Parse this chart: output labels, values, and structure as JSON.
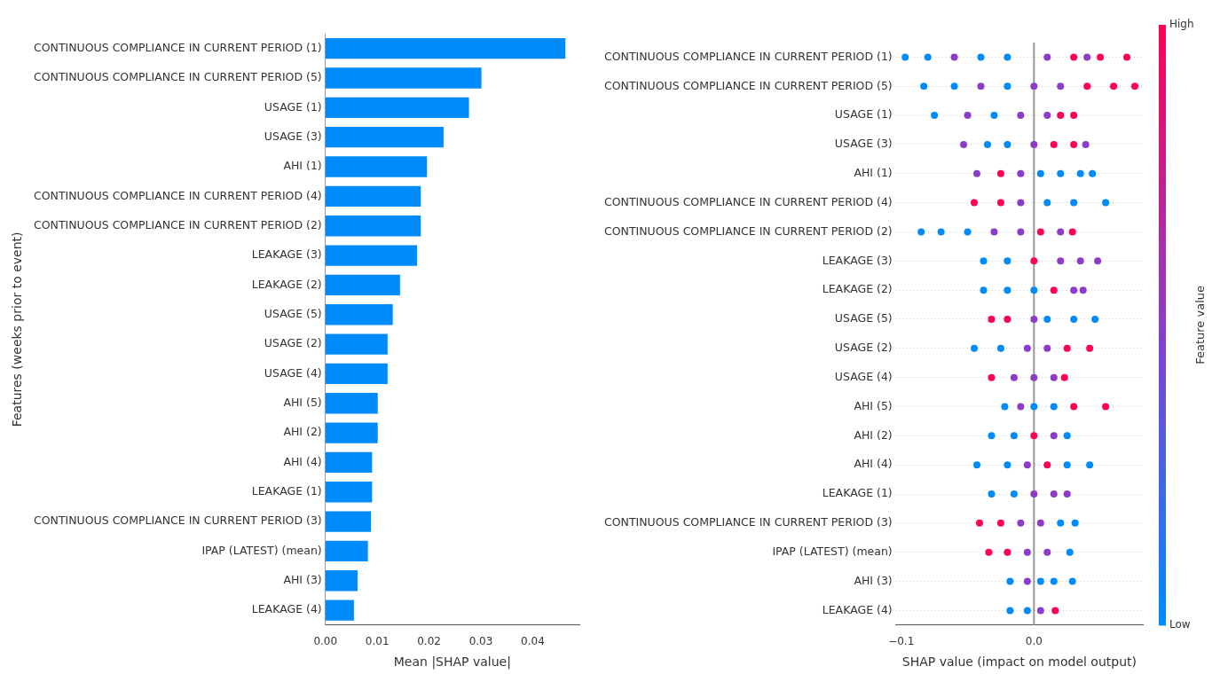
{
  "chart_data": [
    {
      "type": "bar",
      "orientation": "horizontal",
      "xlabel": "Mean |SHAP value|",
      "ylabel": "Features (weeks prior to event)",
      "categories": [
        "CONTINUOUS COMPLIANCE IN CURRENT PERIOD (1)",
        "CONTINUOUS COMPLIANCE IN CURRENT PERIOD (5)",
        "USAGE (1)",
        "USAGE (3)",
        "AHI (1)",
        "CONTINUOUS COMPLIANCE IN CURRENT PERIOD (4)",
        "CONTINUOUS COMPLIANCE IN CURRENT PERIOD (2)",
        "LEAKAGE (3)",
        "LEAKAGE (2)",
        "USAGE (5)",
        "USAGE (2)",
        "USAGE (4)",
        "AHI (5)",
        "AHI (2)",
        "AHI (4)",
        "LEAKAGE (1)",
        "CONTINUOUS COMPLIANCE IN CURRENT PERIOD (3)",
        "IPAP (LATEST) (mean)",
        "AHI (3)",
        "LEAKAGE (4)"
      ],
      "values": [
        0.0463,
        0.0301,
        0.0277,
        0.0228,
        0.0196,
        0.0184,
        0.0184,
        0.0177,
        0.0144,
        0.013,
        0.012,
        0.012,
        0.0101,
        0.0101,
        0.009,
        0.009,
        0.0088,
        0.0082,
        0.0062,
        0.0055
      ],
      "color": "#008bfb",
      "xlim": [
        0,
        0.049
      ],
      "xticks": [
        {
          "value": 0,
          "label": "0.00"
        },
        {
          "value": 0.01,
          "label": "0.01"
        },
        {
          "value": 0.02,
          "label": "0.02"
        },
        {
          "value": 0.03,
          "label": "0.03"
        },
        {
          "value": 0.04,
          "label": "0.04"
        }
      ]
    },
    {
      "type": "scatter",
      "orientation": "horizontal",
      "xlabel": "SHAP value (impact on model output)",
      "clabel": "Feature value",
      "grid": "y",
      "categories": [
        "CONTINUOUS COMPLIANCE IN CURRENT PERIOD (1)",
        "CONTINUOUS COMPLIANCE IN CURRENT PERIOD (5)",
        "USAGE (1)",
        "USAGE (3)",
        "AHI (1)",
        "CONTINUOUS COMPLIANCE IN CURRENT PERIOD (4)",
        "CONTINUOUS COMPLIANCE IN CURRENT PERIOD (2)",
        "LEAKAGE (3)",
        "LEAKAGE (2)",
        "USAGE (5)",
        "USAGE (2)",
        "USAGE (4)",
        "AHI (5)",
        "AHI (2)",
        "AHI (4)",
        "LEAKAGE (1)",
        "CONTINUOUS COMPLIANCE IN CURRENT PERIOD (3)",
        "IPAP (LATEST) (mean)",
        "AHI (3)",
        "LEAKAGE (4)"
      ],
      "series": [
        {
          "values": [
            -0.097,
            -0.083,
            -0.075,
            -0.053,
            -0.043,
            -0.045,
            -0.085,
            -0.038,
            -0.038,
            -0.032,
            -0.045,
            -0.032,
            -0.022,
            -0.032,
            -0.043,
            -0.032,
            -0.041,
            -0.034,
            -0.018,
            -0.018
          ],
          "colors": [
            "#008bfb",
            "#008bfb",
            "#008bfb",
            "#8c3cc8",
            "#8c3cc8",
            "#ff0052",
            "#008bfb",
            "#008bfb",
            "#008bfb",
            "#ff0052",
            "#008bfb",
            "#ff0052",
            "#008bfb",
            "#008bfb",
            "#008bfb",
            "#008bfb",
            "#ff0052",
            "#ff0052",
            "#008bfb",
            "#008bfb"
          ]
        },
        {
          "values": [
            -0.08,
            -0.06,
            -0.05,
            -0.035,
            -0.025,
            -0.025,
            -0.07,
            -0.02,
            -0.02,
            -0.02,
            -0.025,
            -0.015,
            -0.01,
            -0.015,
            -0.02,
            -0.015,
            -0.025,
            -0.02,
            -0.005,
            -0.005
          ],
          "colors": [
            "#008bfb",
            "#008bfb",
            "#8c3cc8",
            "#008bfb",
            "#ff0052",
            "#ff0052",
            "#008bfb",
            "#008bfb",
            "#008bfb",
            "#ff0052",
            "#008bfb",
            "#8c3cc8",
            "#8c3cc8",
            "#008bfb",
            "#008bfb",
            "#008bfb",
            "#ff0052",
            "#ff0052",
            "#8c3cc8",
            "#008bfb"
          ]
        },
        {
          "values": [
            -0.06,
            -0.04,
            -0.03,
            -0.02,
            -0.01,
            -0.01,
            -0.05,
            0.0,
            0.0,
            0.0,
            -0.005,
            0.0,
            0.0,
            0.0,
            -0.005,
            0.0,
            -0.01,
            -0.005,
            0.005,
            0.005
          ],
          "colors": [
            "#8c3cc8",
            "#8c3cc8",
            "#008bfb",
            "#008bfb",
            "#8c3cc8",
            "#8c3cc8",
            "#008bfb",
            "#ff0052",
            "#008bfb",
            "#8c3cc8",
            "#8c3cc8",
            "#8c3cc8",
            "#008bfb",
            "#ff0052",
            "#8c3cc8",
            "#8c3cc8",
            "#8c3cc8",
            "#8c3cc8",
            "#008bfb",
            "#8c3cc8"
          ]
        },
        {
          "values": [
            -0.04,
            -0.02,
            -0.01,
            0.0,
            0.005,
            0.01,
            -0.03,
            0.02,
            0.015,
            0.01,
            0.01,
            0.015,
            0.015,
            0.015,
            0.01,
            0.015,
            0.005,
            0.01,
            0.015,
            0.016
          ],
          "colors": [
            "#008bfb",
            "#008bfb",
            "#8c3cc8",
            "#8c3cc8",
            "#008bfb",
            "#008bfb",
            "#8c3cc8",
            "#8c3cc8",
            "#ff0052",
            "#008bfb",
            "#8c3cc8",
            "#8c3cc8",
            "#008bfb",
            "#8c3cc8",
            "#ff0052",
            "#8c3cc8",
            "#8c3cc8",
            "#8c3cc8",
            "#008bfb",
            "#ff0052"
          ]
        },
        {
          "values": [
            -0.02,
            0.0,
            0.01,
            0.015,
            0.02,
            0.03,
            -0.01,
            0.035,
            0.03,
            0.03,
            0.025,
            0.023,
            0.03,
            0.025,
            0.025,
            0.025,
            0.02,
            0.027,
            0.029,
            null
          ],
          "colors": [
            "#008bfb",
            "#8c3cc8",
            "#8c3cc8",
            "#ff0052",
            "#008bfb",
            "#008bfb",
            "#8c3cc8",
            "#8c3cc8",
            "#8c3cc8",
            "#008bfb",
            "#ff0052",
            "#ff0052",
            "#ff0052",
            "#008bfb",
            "#008bfb",
            "#8c3cc8",
            "#008bfb",
            "#008bfb",
            "#008bfb",
            null
          ]
        },
        {
          "values": [
            0.01,
            0.02,
            0.02,
            0.03,
            0.035,
            0.054,
            0.005,
            0.048,
            0.037,
            0.046,
            0.042,
            null,
            0.054,
            null,
            0.042,
            null,
            0.031,
            null,
            null,
            null
          ],
          "colors": [
            "#8c3cc8",
            "#8c3cc8",
            "#ff0052",
            "#ff0052",
            "#008bfb",
            "#008bfb",
            "#ff0052",
            "#8c3cc8",
            "#8c3cc8",
            "#008bfb",
            "#ff0052",
            null,
            "#ff0052",
            null,
            "#008bfb",
            null,
            "#008bfb",
            null,
            null,
            null
          ]
        },
        {
          "values": [
            0.03,
            0.04,
            0.03,
            0.039,
            0.044,
            null,
            0.02,
            null,
            null,
            null,
            null,
            null,
            null,
            null,
            null,
            null,
            null,
            null,
            null,
            null
          ],
          "colors": [
            "#ff0052",
            "#ff0052",
            "#ff0052",
            "#8c3cc8",
            "#008bfb",
            null,
            "#8c3cc8",
            null,
            null,
            null,
            null,
            null,
            null,
            null,
            null,
            null,
            null,
            null,
            null,
            null
          ]
        },
        {
          "values": [
            0.04,
            0.06,
            null,
            null,
            null,
            null,
            0.029,
            null,
            null,
            null,
            null,
            null,
            null,
            null,
            null,
            null,
            null,
            null,
            null,
            null
          ],
          "colors": [
            "#8c3cc8",
            "#ff0052",
            null,
            null,
            null,
            null,
            "#ff0052",
            null,
            null,
            null,
            null,
            null,
            null,
            null,
            null,
            null,
            null,
            null,
            null,
            null
          ]
        },
        {
          "values": [
            0.05,
            0.076,
            null,
            null,
            null,
            null,
            null,
            null,
            null,
            null,
            null,
            null,
            null,
            null,
            null,
            null,
            null,
            null,
            null,
            null
          ],
          "color": "#ff0052"
        },
        {
          "values": [
            0.07,
            null,
            null,
            null,
            null,
            null,
            null,
            null,
            null,
            null,
            null,
            null,
            null,
            null,
            null,
            null,
            null,
            null,
            null,
            null
          ],
          "color": "#ff0052"
        }
      ],
      "clim": [
        0,
        1
      ],
      "cticks": [
        {
          "value": 0,
          "label": "Low"
        },
        {
          "value": 1,
          "label": "High"
        }
      ],
      "xlim": [
        -0.104,
        0.082
      ],
      "xticks": [
        {
          "value": -0.1,
          "label": "−0.1"
        },
        {
          "value": 0,
          "label": "0.0"
        }
      ],
      "ref_lines": [
        {
          "axis": "x",
          "value": 0,
          "color": "#999999"
        }
      ]
    }
  ]
}
